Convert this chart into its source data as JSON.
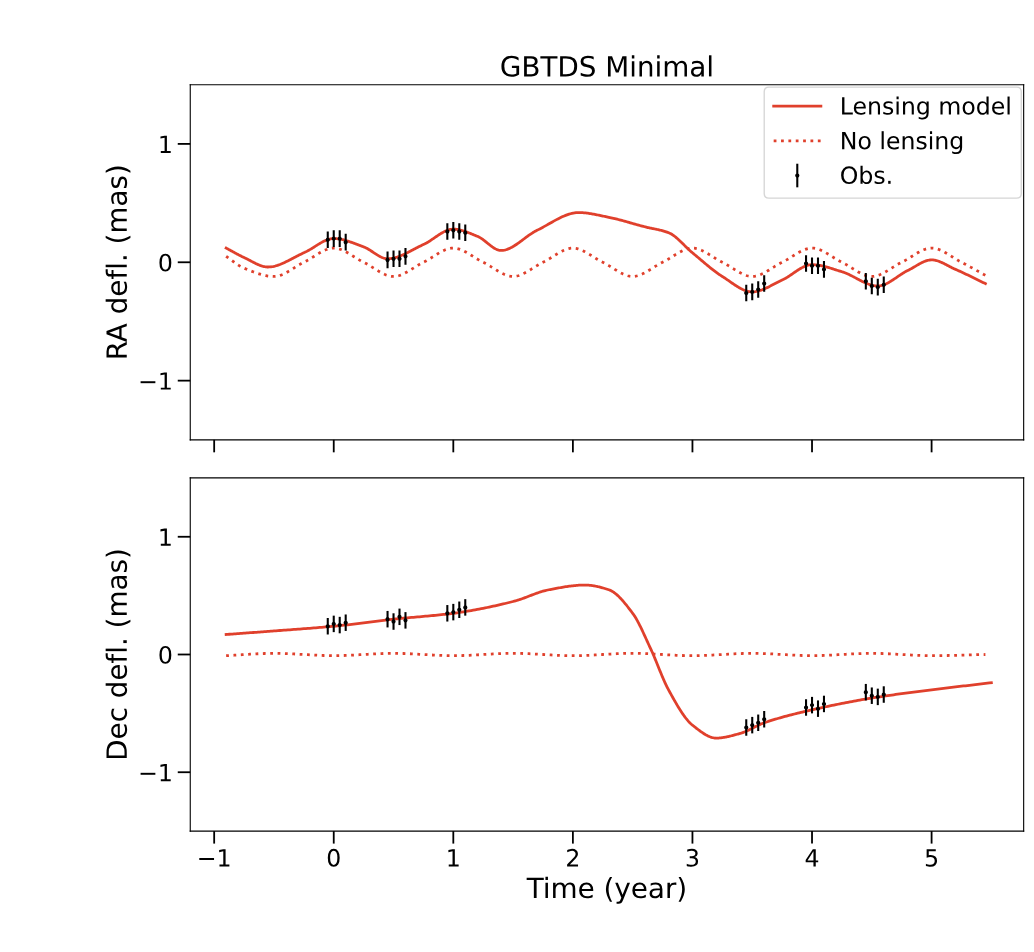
{
  "chart_data": [
    {
      "type": "line",
      "title": "GBTDS Minimal",
      "ylabel": "RA defl. (mas)",
      "xlim": [
        -1.2,
        5.77
      ],
      "ylim": [
        -1.5,
        1.5
      ],
      "xticks": [
        -1,
        0,
        1,
        2,
        3,
        4,
        5
      ],
      "yticks": [
        {
          "value": -1,
          "label": "−1"
        },
        0,
        1
      ],
      "tick_labels": "y",
      "legend": "top right",
      "grid": false,
      "series": [
        {
          "name": "Lensing model",
          "line_style": "solid",
          "color": "#e0402c",
          "x": [
            -0.9,
            -0.75,
            -0.55,
            -0.25,
            0,
            0.25,
            0.45,
            0.75,
            1.0,
            1.2,
            1.4,
            1.7,
            2.05,
            2.3,
            2.6,
            2.8,
            3.0,
            3.25,
            3.5,
            3.75,
            4.0,
            4.25,
            4.55,
            4.8,
            5.0,
            5.2,
            5.45
          ],
          "values": [
            0.12,
            0.04,
            -0.04,
            0.08,
            0.2,
            0.13,
            0.03,
            0.15,
            0.28,
            0.22,
            0.1,
            0.27,
            0.42,
            0.38,
            0.3,
            0.25,
            0.08,
            -0.12,
            -0.25,
            -0.15,
            -0.02,
            -0.08,
            -0.2,
            -0.07,
            0.02,
            -0.06,
            -0.18
          ]
        },
        {
          "name": "No lensing",
          "line_style": "dotted",
          "color": "#e0402c",
          "x": [
            -0.9,
            -0.75,
            -0.5,
            -0.25,
            0,
            0.25,
            0.5,
            0.75,
            1.0,
            1.25,
            1.5,
            1.75,
            2.0,
            2.25,
            2.5,
            2.75,
            3.0,
            3.25,
            3.5,
            3.75,
            4.0,
            4.25,
            4.5,
            4.75,
            5.0,
            5.25,
            5.45
          ],
          "values": [
            0.05,
            -0.05,
            -0.12,
            0,
            0.12,
            0,
            -0.12,
            0,
            0.12,
            0,
            -0.12,
            0,
            0.12,
            0,
            -0.12,
            0,
            0.12,
            0,
            -0.12,
            0,
            0.12,
            0,
            -0.12,
            0,
            0.12,
            0,
            -0.11
          ]
        },
        {
          "name": "Obs.",
          "type": "scatter",
          "marker": "circle",
          "color": "#000000",
          "x": [
            -0.05,
            0,
            0.05,
            0.1,
            0.45,
            0.5,
            0.55,
            0.6,
            0.95,
            1.0,
            1.05,
            1.1,
            3.45,
            3.5,
            3.55,
            3.6,
            3.95,
            4.0,
            4.05,
            4.1,
            4.45,
            4.5,
            4.55,
            4.6
          ],
          "values": [
            0.19,
            0.2,
            0.2,
            0.17,
            0.02,
            0.03,
            0.03,
            0.05,
            0.26,
            0.27,
            0.26,
            0.25,
            -0.26,
            -0.25,
            -0.23,
            -0.18,
            -0.01,
            -0.03,
            -0.03,
            -0.06,
            -0.16,
            -0.2,
            -0.21,
            -0.19
          ],
          "errors": [
            0.07,
            0.07,
            0.07,
            0.07,
            0.07,
            0.07,
            0.07,
            0.07,
            0.07,
            0.07,
            0.07,
            0.07,
            0.07,
            0.07,
            0.07,
            0.07,
            0.07,
            0.07,
            0.07,
            0.07,
            0.07,
            0.07,
            0.07,
            0.07
          ]
        }
      ]
    },
    {
      "type": "line",
      "xlabel": "Time (year)",
      "ylabel": "Dec defl. (mas)",
      "xlim": [
        -1.2,
        5.77
      ],
      "ylim": [
        -1.5,
        1.5
      ],
      "xticks": [
        {
          "value": -1,
          "label": "−1"
        },
        0,
        1,
        2,
        3,
        4,
        5
      ],
      "yticks": [
        {
          "value": -1,
          "label": "−1"
        },
        0,
        1
      ],
      "grid": false,
      "series": [
        {
          "line_style": "solid",
          "color": "#e0402c",
          "x": [
            -0.9,
            -0.5,
            0,
            0.5,
            1.0,
            1.5,
            1.8,
            2.1,
            2.3,
            2.5,
            2.65,
            2.8,
            3.0,
            3.2,
            3.4,
            3.6,
            4.0,
            4.5,
            5.0,
            5.5
          ],
          "values": [
            0.17,
            0.2,
            0.24,
            0.3,
            0.35,
            0.45,
            0.55,
            0.59,
            0.55,
            0.35,
            0.05,
            -0.3,
            -0.6,
            -0.71,
            -0.67,
            -0.58,
            -0.47,
            -0.37,
            -0.3,
            -0.24
          ]
        },
        {
          "line_style": "dotted",
          "color": "#e0402c",
          "x": [
            -0.9,
            -0.5,
            0,
            0.5,
            1.0,
            1.5,
            2.0,
            2.5,
            3.0,
            3.5,
            4.0,
            4.5,
            5.0,
            5.45
          ],
          "values": [
            -0.01,
            0.01,
            -0.01,
            0.01,
            -0.01,
            0.01,
            -0.01,
            0.01,
            -0.01,
            0.01,
            -0.01,
            0.01,
            -0.01,
            0
          ]
        },
        {
          "type": "scatter",
          "marker": "circle",
          "color": "#000000",
          "x": [
            -0.05,
            0,
            0.05,
            0.1,
            0.45,
            0.5,
            0.55,
            0.6,
            0.95,
            1.0,
            1.05,
            1.1,
            3.45,
            3.5,
            3.55,
            3.6,
            3.95,
            4.0,
            4.05,
            4.1,
            4.45,
            4.5,
            4.55,
            4.6
          ],
          "values": [
            0.24,
            0.26,
            0.25,
            0.27,
            0.3,
            0.28,
            0.32,
            0.29,
            0.35,
            0.36,
            0.38,
            0.4,
            -0.62,
            -0.6,
            -0.58,
            -0.55,
            -0.45,
            -0.43,
            -0.46,
            -0.42,
            -0.32,
            -0.35,
            -0.36,
            -0.34
          ],
          "errors": [
            0.07,
            0.07,
            0.07,
            0.07,
            0.07,
            0.07,
            0.07,
            0.07,
            0.07,
            0.07,
            0.07,
            0.07,
            0.07,
            0.07,
            0.07,
            0.07,
            0.07,
            0.07,
            0.07,
            0.07,
            0.07,
            0.07,
            0.07,
            0.07
          ]
        }
      ]
    }
  ]
}
